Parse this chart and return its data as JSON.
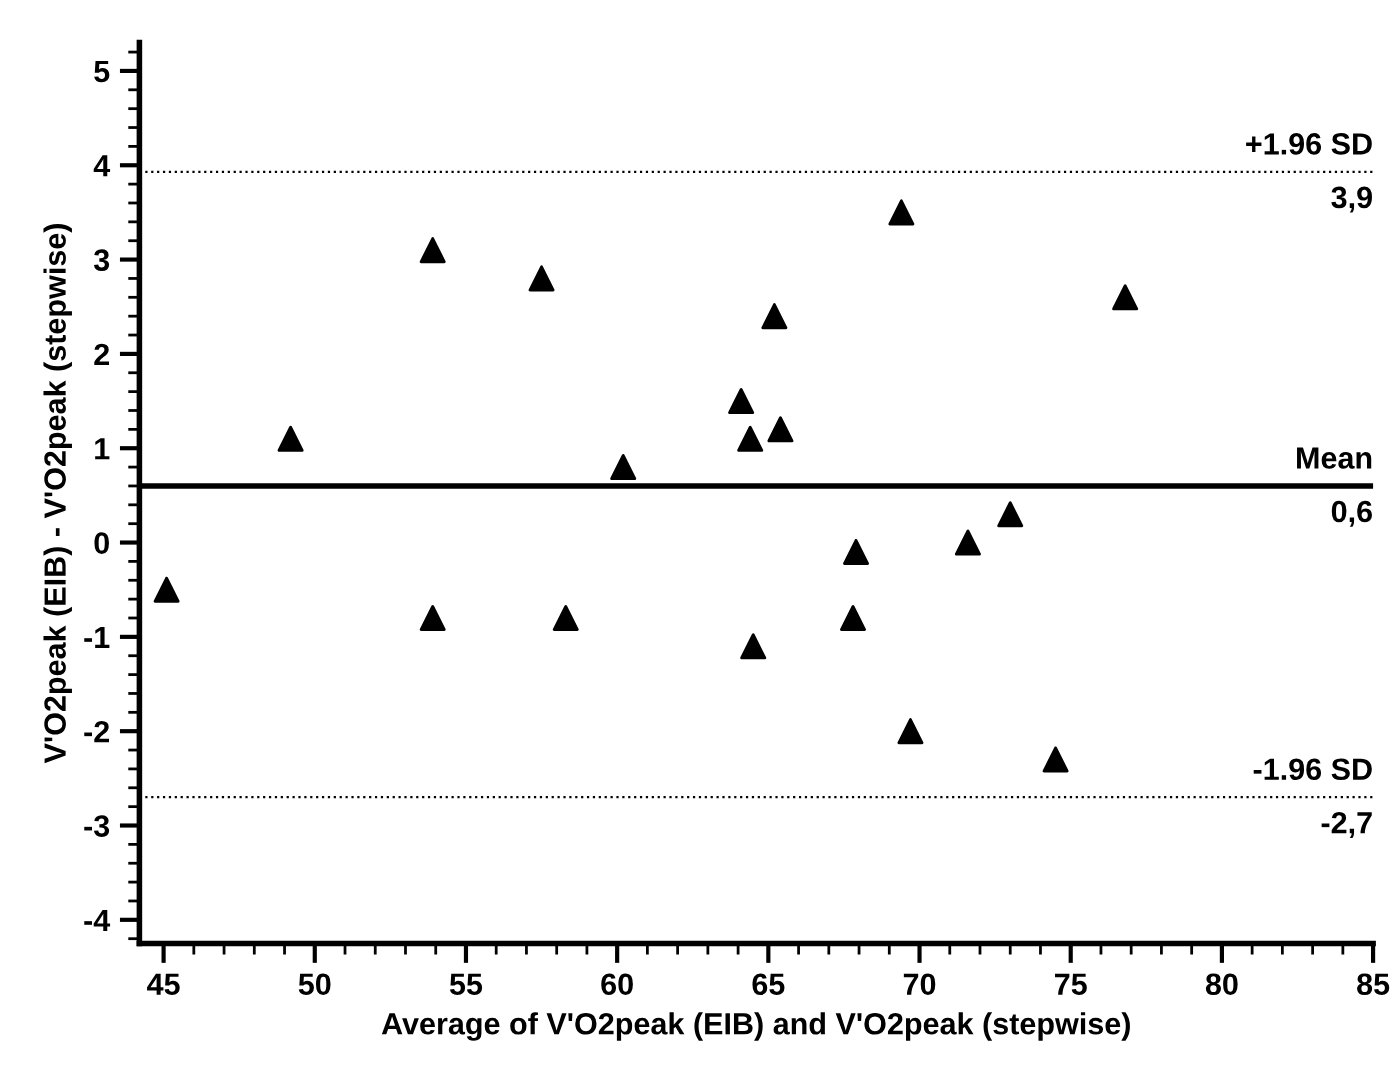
{
  "chart_data": {
    "type": "scatter",
    "xlabel": "Average of V'O2peak (EIB) and V'O2peak (stepwise)",
    "ylabel": "V'O2peak (EIB) - V'O2peak (stepwise)",
    "x": [
      45.1,
      49.2,
      53.9,
      53.9,
      57.5,
      58.3,
      60.2,
      64.1,
      64.4,
      64.5,
      65.2,
      65.4,
      67.9,
      67.8,
      69.4,
      69.7,
      71.6,
      73.0,
      74.5,
      76.8
    ],
    "values": [
      -0.5,
      1.1,
      3.1,
      -0.8,
      2.8,
      -0.8,
      0.8,
      1.5,
      1.1,
      -1.1,
      2.4,
      1.2,
      -0.1,
      -0.8,
      3.5,
      -2.0,
      0.0,
      0.3,
      -2.3,
      2.6
    ],
    "color": "#000000",
    "marker": "triangle",
    "grid": false,
    "legend": false,
    "xlim": [
      44.2,
      85
    ],
    "xticks": [
      45,
      50,
      55,
      60,
      65,
      70,
      75,
      80,
      85
    ],
    "ylim": [
      -4.25,
      5.3
    ],
    "yticks": [
      -4,
      -3,
      -2,
      -1,
      0,
      1,
      2,
      3,
      4,
      5
    ],
    "ref_lines": [
      {
        "axis": "y",
        "value": 3.93,
        "label": "+1.96 SD",
        "color": "#000000",
        "line_style": "dotted"
      },
      {
        "axis": "y",
        "value": 0.6,
        "label": "Mean",
        "color": "#000000",
        "line_style": "solid"
      },
      {
        "axis": "y",
        "value": -2.7,
        "label": "-1.96 SD",
        "color": "#000000",
        "line_style": "dotted"
      }
    ],
    "annotations": [
      "3,9",
      "0,6",
      "-2,7"
    ]
  }
}
